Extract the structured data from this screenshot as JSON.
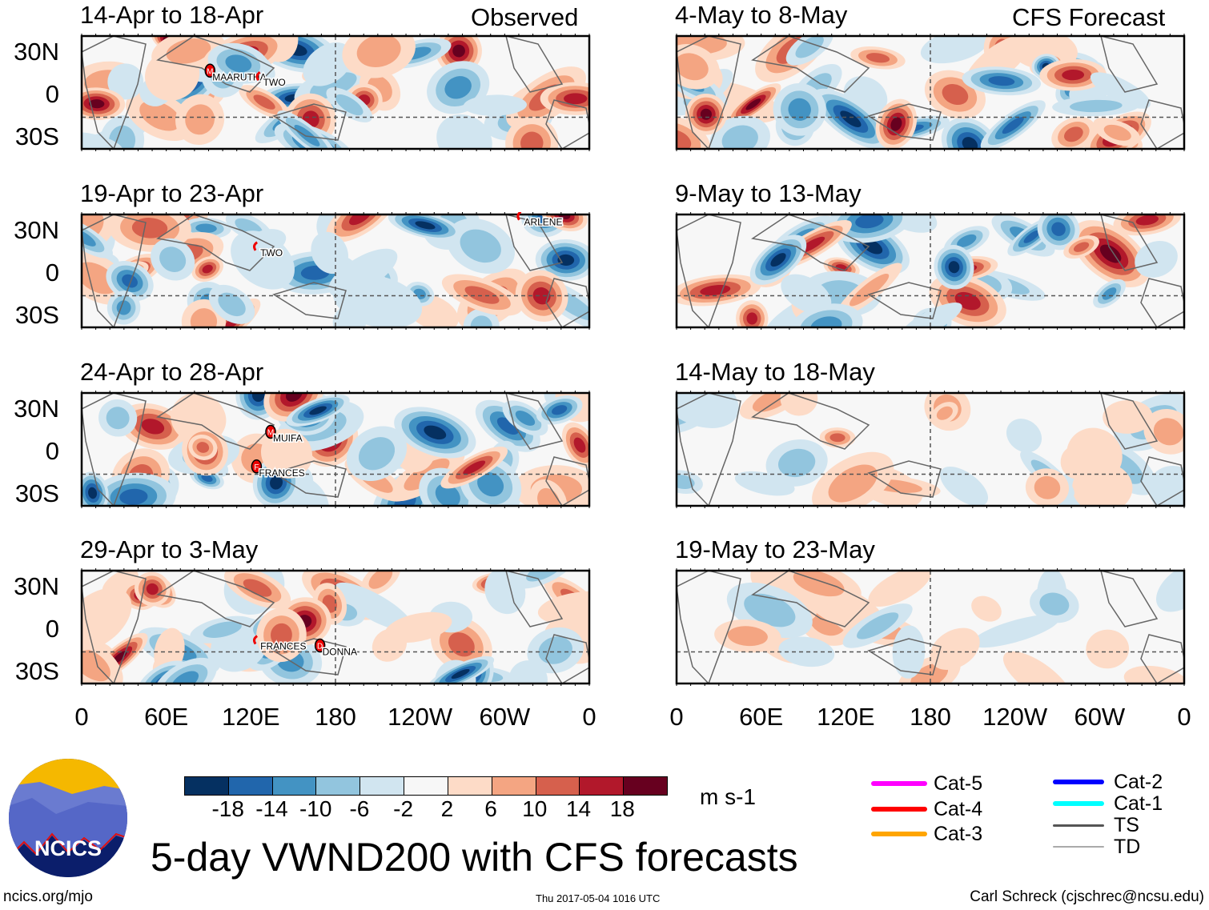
{
  "header": {
    "left_label": "Observed",
    "right_label": "CFS Forecast"
  },
  "panels": {
    "observed": [
      {
        "title": "14-Apr to 18-Apr",
        "storms": [
          {
            "name": "MAARUTHA",
            "marker": "M",
            "lon": 91,
            "lat": 16
          },
          {
            "name": "TWO",
            "marker": "",
            "lon": 127,
            "lat": 12
          }
        ]
      },
      {
        "title": "19-Apr to 23-Apr",
        "storms": [
          {
            "name": "TWO",
            "marker": "",
            "lon": 125,
            "lat": 18
          },
          {
            "name": "ARLENE",
            "marker": "",
            "lon": 312,
            "lat": 40
          }
        ]
      },
      {
        "title": "24-Apr to 28-Apr",
        "storms": [
          {
            "name": "MUIFA",
            "marker": "M",
            "lon": 134,
            "lat": 13
          },
          {
            "name": "FRANCES",
            "marker": "F",
            "lon": 124,
            "lat": -12
          }
        ]
      },
      {
        "title": "29-Apr to 3-May",
        "storms": [
          {
            "name": "FRANCES",
            "marker": "",
            "lon": 125,
            "lat": -9
          },
          {
            "name": "DONNA",
            "marker": "D",
            "lon": 169,
            "lat": -13
          }
        ]
      }
    ],
    "forecast": [
      {
        "title": "4-May to 8-May",
        "storms": []
      },
      {
        "title": "9-May to 13-May",
        "storms": []
      },
      {
        "title": "14-May to 18-May",
        "storms": []
      },
      {
        "title": "19-May to 23-May",
        "storms": []
      }
    ]
  },
  "axes": {
    "lat_labels": [
      "30N",
      "0",
      "30S"
    ],
    "lon_labels": [
      "0",
      "60E",
      "120E",
      "180",
      "120W",
      "60W",
      "0"
    ]
  },
  "colorbar": {
    "colors": [
      "#053061",
      "#2166ac",
      "#4393c3",
      "#92c5de",
      "#d1e5f0",
      "#f7f7f7",
      "#fddbc7",
      "#f4a582",
      "#d6604d",
      "#b2182b",
      "#67001f"
    ],
    "labels": [
      "-18",
      "-14",
      "-10",
      "-6",
      "-2",
      "2",
      "6",
      "10",
      "14",
      "18"
    ],
    "units": "m s-1"
  },
  "legend": [
    {
      "label": "Cat-5",
      "color": "#ff00ff"
    },
    {
      "label": "Cat-4",
      "color": "#ff0000"
    },
    {
      "label": "Cat-3",
      "color": "#ffa500"
    },
    {
      "label": "Cat-2",
      "color": "#0000ff"
    },
    {
      "label": "Cat-1",
      "color": "#00ffff"
    },
    {
      "label": "TS",
      "color": "#555555"
    },
    {
      "label": "TD",
      "color": "#aaaaaa"
    }
  ],
  "footer": {
    "title": "5-day VWND200 with CFS forecasts",
    "logo_text": "NCICS",
    "website": "ncics.org/mjo",
    "timestamp": "Thu 2017-05-04 1016 UTC",
    "author": "Carl Schreck (cjschrec@ncsu.edu)"
  }
}
